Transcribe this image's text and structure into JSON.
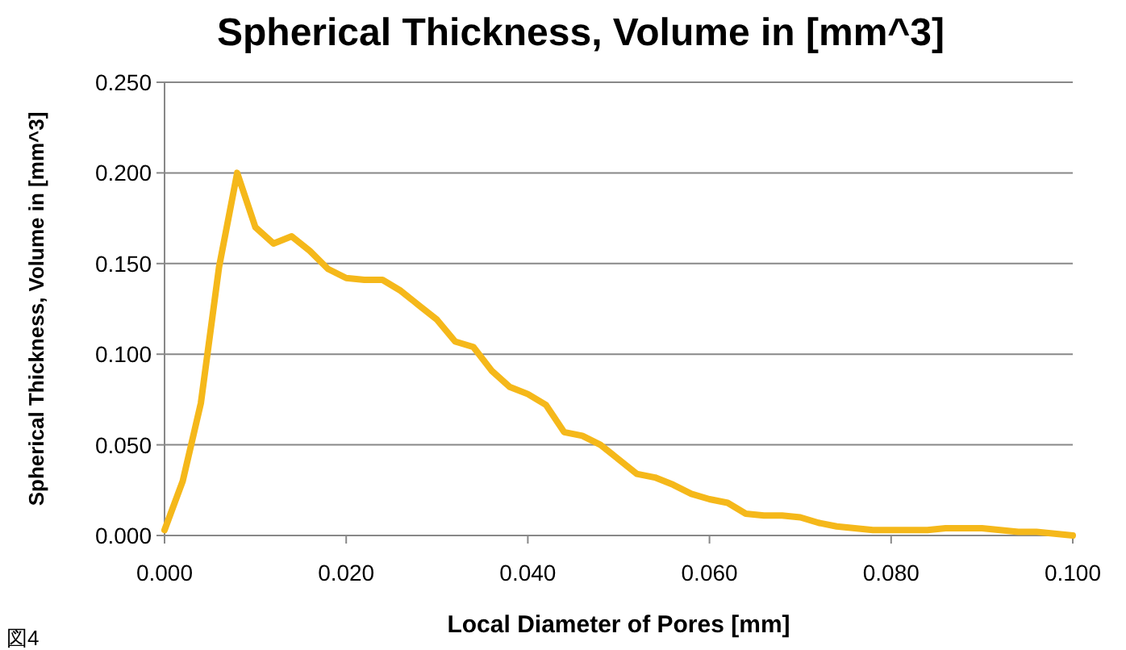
{
  "chart_data": {
    "type": "line",
    "title": "Spherical Thickness, Volume in [mm^3]",
    "xlabel": "Local Diameter of Pores [mm]",
    "ylabel": "Spherical Thickness, Volume in [mm^3]",
    "x": [
      0,
      0.002,
      0.004,
      0.006,
      0.008,
      0.01,
      0.012,
      0.014,
      0.016,
      0.018,
      0.02,
      0.022,
      0.024,
      0.026,
      0.028,
      0.03,
      0.032,
      0.034,
      0.036,
      0.038,
      0.04,
      0.042,
      0.044,
      0.046,
      0.048,
      0.05,
      0.052,
      0.054,
      0.056,
      0.058,
      0.06,
      0.062,
      0.064,
      0.066,
      0.068,
      0.07,
      0.072,
      0.074,
      0.076,
      0.078,
      0.08,
      0.082,
      0.084,
      0.086,
      0.088,
      0.09,
      0.092,
      0.094,
      0.096,
      0.098,
      0.1
    ],
    "series": [
      {
        "color": "#f5b81a",
        "values": [
          0.003,
          0.03,
          0.073,
          0.148,
          0.2,
          0.17,
          0.161,
          0.165,
          0.157,
          0.147,
          0.142,
          0.141,
          0.141,
          0.135,
          0.127,
          0.119,
          0.107,
          0.104,
          0.091,
          0.082,
          0.078,
          0.072,
          0.057,
          0.055,
          0.05,
          0.042,
          0.034,
          0.032,
          0.028,
          0.023,
          0.02,
          0.018,
          0.012,
          0.011,
          0.011,
          0.01,
          0.007,
          0.005,
          0.004,
          0.003,
          0.003,
          0.003,
          0.003,
          0.004,
          0.004,
          0.004,
          0.003,
          0.002,
          0.002,
          0.001,
          0.0
        ]
      }
    ],
    "xlim": [
      0,
      0.1
    ],
    "ylim": [
      0,
      0.25
    ],
    "xticks": [
      {
        "value": 0,
        "label": "0.000"
      },
      {
        "value": 0.02,
        "label": "0.020"
      },
      {
        "value": 0.04,
        "label": "0.040"
      },
      {
        "value": 0.06,
        "label": "0.060"
      },
      {
        "value": 0.08,
        "label": "0.080"
      },
      {
        "value": 0.1,
        "label": "0.100"
      }
    ],
    "yticks": [
      {
        "value": 0,
        "label": "0.000"
      },
      {
        "value": 0.05,
        "label": "0.050"
      },
      {
        "value": 0.1,
        "label": "0.100"
      },
      {
        "value": 0.15,
        "label": "0.150"
      },
      {
        "value": 0.2,
        "label": "0.200"
      },
      {
        "value": 0.25,
        "label": "0.250"
      }
    ],
    "grid": "y",
    "marker": "none",
    "line_style": "solid",
    "annotations": [
      "図4"
    ]
  }
}
